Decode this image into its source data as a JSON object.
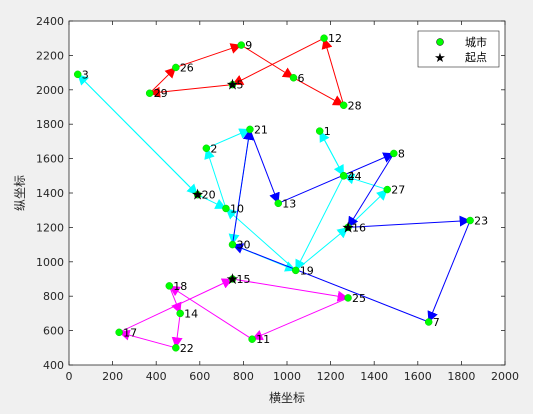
{
  "chart_data": {
    "type": "scatter",
    "xlabel": "横坐标",
    "ylabel": "纵坐标",
    "xlim": [
      0,
      2000
    ],
    "ylim": [
      400,
      2400
    ],
    "xticks": [
      "0",
      "200",
      "400",
      "600",
      "800",
      "1000",
      "1200",
      "1400",
      "1600",
      "1800",
      "2000"
    ],
    "yticks": [
      "400",
      "600",
      "800",
      "1000",
      "1200",
      "1400",
      "1600",
      "1800",
      "2000",
      "2200",
      "2400"
    ],
    "grid": false,
    "legend": {
      "position": "top-right",
      "entries": [
        {
          "label": "城市",
          "marker": "circle",
          "color": "#00ff00"
        },
        {
          "label": "起点",
          "marker": "star",
          "color": "#000000"
        }
      ]
    },
    "cities": [
      {
        "id": "1",
        "x": 1150,
        "y": 1760
      },
      {
        "id": "2",
        "x": 630,
        "y": 1660
      },
      {
        "id": "3",
        "x": 40,
        "y": 2090
      },
      {
        "id": "4",
        "x": 1260,
        "y": 1500
      },
      {
        "id": "5",
        "x": 750,
        "y": 2030
      },
      {
        "id": "6",
        "x": 1030,
        "y": 2070
      },
      {
        "id": "7",
        "x": 1650,
        "y": 650
      },
      {
        "id": "8",
        "x": 1490,
        "y": 1630
      },
      {
        "id": "9",
        "x": 790,
        "y": 2260
      },
      {
        "id": "10",
        "x": 720,
        "y": 1310
      },
      {
        "id": "11",
        "x": 840,
        "y": 550
      },
      {
        "id": "12",
        "x": 1170,
        "y": 2300
      },
      {
        "id": "13",
        "x": 960,
        "y": 1340
      },
      {
        "id": "14",
        "x": 510,
        "y": 700
      },
      {
        "id": "15",
        "x": 750,
        "y": 900
      },
      {
        "id": "16",
        "x": 1280,
        "y": 1200
      },
      {
        "id": "17",
        "x": 230,
        "y": 590
      },
      {
        "id": "18",
        "x": 460,
        "y": 860
      },
      {
        "id": "19",
        "x": 1040,
        "y": 950
      },
      {
        "id": "20",
        "x": 590,
        "y": 1390
      },
      {
        "id": "21",
        "x": 830,
        "y": 1770
      },
      {
        "id": "22",
        "x": 490,
        "y": 500
      },
      {
        "id": "23",
        "x": 1840,
        "y": 1240
      },
      {
        "id": "24",
        "x": 1260,
        "y": 1500
      },
      {
        "id": "25",
        "x": 1280,
        "y": 790
      },
      {
        "id": "26",
        "x": 490,
        "y": 2130
      },
      {
        "id": "27",
        "x": 1460,
        "y": 1420
      },
      {
        "id": "28",
        "x": 1260,
        "y": 1910
      },
      {
        "id": "29",
        "x": 370,
        "y": 1980
      },
      {
        "id": "30",
        "x": 750,
        "y": 1100
      }
    ],
    "starts": [
      {
        "x": 750,
        "y": 2030
      },
      {
        "x": 590,
        "y": 1390
      },
      {
        "x": 1280,
        "y": 1200
      },
      {
        "x": 750,
        "y": 900
      }
    ],
    "routes": [
      {
        "color": "#ff0000",
        "path": [
          [
            750,
            2030
          ],
          [
            370,
            1980
          ],
          [
            490,
            2130
          ],
          [
            790,
            2260
          ],
          [
            1030,
            2070
          ],
          [
            1260,
            1910
          ],
          [
            1170,
            2300
          ],
          [
            750,
            2030
          ]
        ]
      },
      {
        "color": "#00ffff",
        "path": [
          [
            590,
            1390
          ],
          [
            40,
            2090
          ],
          [
            590,
            1390
          ],
          [
            720,
            1310
          ],
          [
            630,
            1660
          ],
          [
            830,
            1770
          ],
          [
            750,
            1100
          ],
          [
            1040,
            950
          ],
          [
            1280,
            1200
          ],
          [
            1460,
            1420
          ],
          [
            1260,
            1500
          ],
          [
            1150,
            1760
          ],
          [
            1260,
            1500
          ],
          [
            1040,
            950
          ],
          [
            720,
            1310
          ]
        ]
      },
      {
        "color": "#0000ff",
        "path": [
          [
            1280,
            1200
          ],
          [
            1840,
            1240
          ],
          [
            1650,
            650
          ],
          [
            750,
            1100
          ],
          [
            830,
            1770
          ],
          [
            960,
            1340
          ],
          [
            1490,
            1630
          ],
          [
            1280,
            1200
          ]
        ]
      },
      {
        "color": "#ff00ff",
        "path": [
          [
            750,
            900
          ],
          [
            1280,
            790
          ],
          [
            840,
            550
          ],
          [
            460,
            860
          ],
          [
            510,
            700
          ],
          [
            490,
            500
          ],
          [
            230,
            590
          ],
          [
            750,
            900
          ]
        ]
      }
    ]
  }
}
